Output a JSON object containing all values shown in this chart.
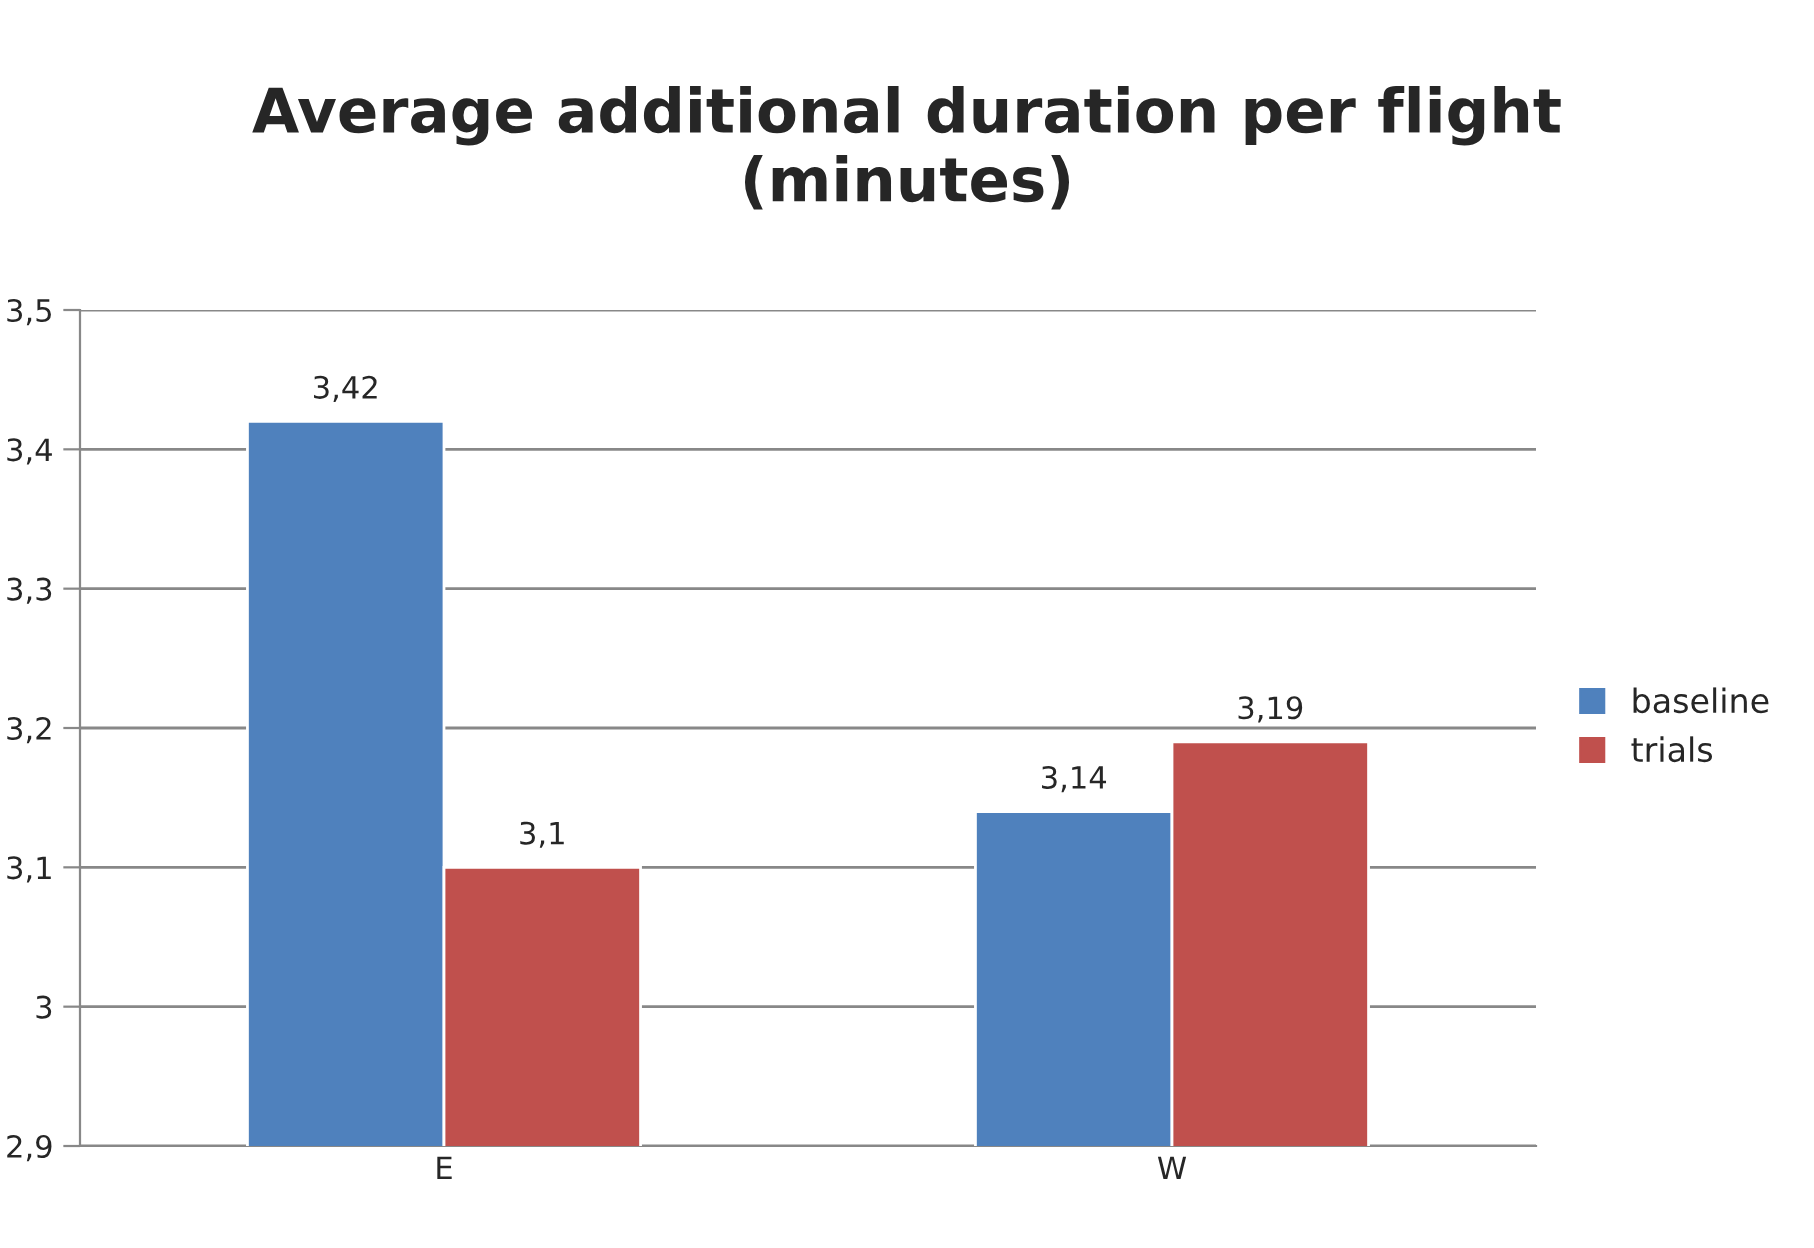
{
  "chart_data": {
    "type": "bar",
    "title": "Average additional duration per flight\n(minutes)",
    "categories": [
      "E",
      "W"
    ],
    "series": [
      {
        "name": "baseline",
        "color": "#4f81bd",
        "values": [
          3.42,
          3.14
        ],
        "value_labels": [
          "3,42",
          "3,14"
        ]
      },
      {
        "name": "trials",
        "color": "#c0504d",
        "values": [
          3.1,
          3.19
        ],
        "value_labels": [
          "3,1",
          "3,19"
        ]
      }
    ],
    "ylim": [
      2.9,
      3.5
    ],
    "yticks": [
      {
        "value": 2.9,
        "label": "2,9"
      },
      3,
      {
        "value": 3.1,
        "label": "3,1"
      },
      {
        "value": 3.2,
        "label": "3,2"
      },
      {
        "value": 3.3,
        "label": "3,3"
      },
      {
        "value": 3.4,
        "label": "3,4"
      },
      {
        "value": 3.5,
        "label": "3,5"
      }
    ],
    "grid": "y",
    "legend": "right"
  }
}
